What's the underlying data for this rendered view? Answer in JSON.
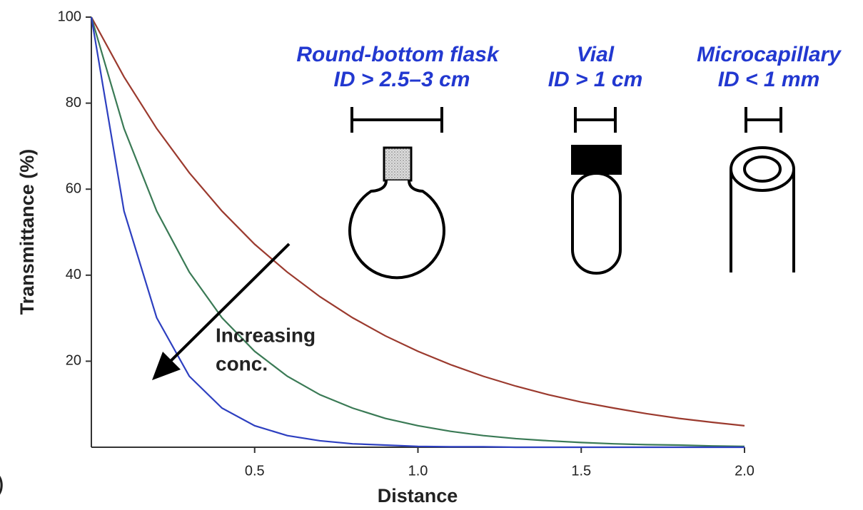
{
  "chart_data": {
    "type": "line",
    "xlabel": "Distance",
    "ylabel": "Transmittance (%)",
    "x": [
      0,
      0.1,
      0.2,
      0.3,
      0.4,
      0.5,
      0.6,
      0.7,
      0.8,
      0.9,
      1.0,
      1.1,
      1.2,
      1.3,
      1.4,
      1.5,
      1.6,
      1.7,
      1.8,
      1.9,
      2.0
    ],
    "series": [
      {
        "color": "#9b3a2e",
        "values": [
          100,
          86.1,
          74.1,
          63.8,
          54.9,
          47.2,
          40.7,
          35.0,
          30.1,
          25.9,
          22.3,
          19.2,
          16.5,
          14.2,
          12.2,
          10.5,
          9.1,
          7.8,
          6.7,
          5.8,
          5.0
        ]
      },
      {
        "color": "#3a7a55",
        "values": [
          100,
          74.1,
          54.9,
          40.7,
          30.1,
          22.3,
          16.5,
          12.2,
          9.1,
          6.7,
          5.0,
          3.7,
          2.7,
          2.0,
          1.5,
          1.1,
          0.8,
          0.6,
          0.5,
          0.3,
          0.2
        ]
      },
      {
        "color": "#2d3fc0",
        "values": [
          100,
          54.9,
          30.1,
          16.5,
          9.1,
          5.0,
          2.7,
          1.5,
          0.8,
          0.5,
          0.2,
          0.1,
          0.1,
          0.0,
          0.0,
          0.0,
          0.0,
          0.0,
          0.0,
          0.0,
          0.0
        ]
      }
    ],
    "xlim": [
      0,
      2.0
    ],
    "ylim": [
      0,
      100
    ],
    "xticks": [
      0.5,
      {
        "value": 1.0,
        "label": "1.0"
      },
      1.5,
      {
        "value": 2.0,
        "label": "2.0"
      }
    ],
    "yticks": [
      20,
      40,
      60,
      80,
      100
    ],
    "annotation": [
      "Increasing",
      "conc."
    ],
    "vessels": [
      {
        "name": "Round-bottom flask",
        "size": "ID > 2.5–3 cm"
      },
      {
        "name": "Vial",
        "size": "ID > 1 cm"
      },
      {
        "name": "Microcapillary",
        "size": "ID < 1 mm"
      }
    ],
    "panel_label": ")"
  }
}
